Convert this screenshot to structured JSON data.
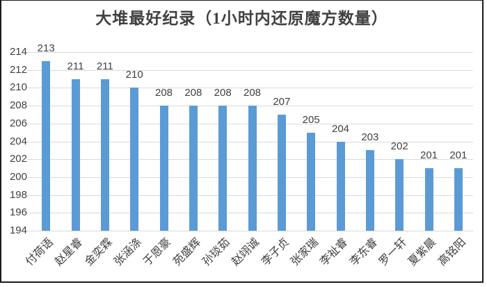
{
  "chart_data": {
    "type": "bar",
    "title": "大堆最好纪录（1小时内还原魔方数量）",
    "categories": [
      "付荷语",
      "赵星睿",
      "金奕霖",
      "张涵涤",
      "于恩豪",
      "苑盛辉",
      "孙琰茹",
      "赵翊诚",
      "李子贞",
      "张家瑞",
      "李祉睿",
      "李东睿",
      "罗一轩",
      "夏紫晨",
      "高铭阳"
    ],
    "values": [
      213,
      211,
      211,
      210,
      208,
      208,
      208,
      208,
      207,
      205,
      204,
      203,
      202,
      201,
      201
    ],
    "xlabel": "",
    "ylabel": "",
    "ylim": [
      194,
      214
    ],
    "yticks": [
      194,
      196,
      198,
      200,
      202,
      204,
      206,
      208,
      210,
      212,
      214
    ],
    "grid": true,
    "legend_position": "none",
    "data_labels_shown": true,
    "colors": {
      "bar": "#5b9bd5",
      "gridline": "#d9d9d9",
      "text": "#404040",
      "title": "#404040",
      "frame_border": "#1a1a1a",
      "background": "#ffffff"
    }
  }
}
